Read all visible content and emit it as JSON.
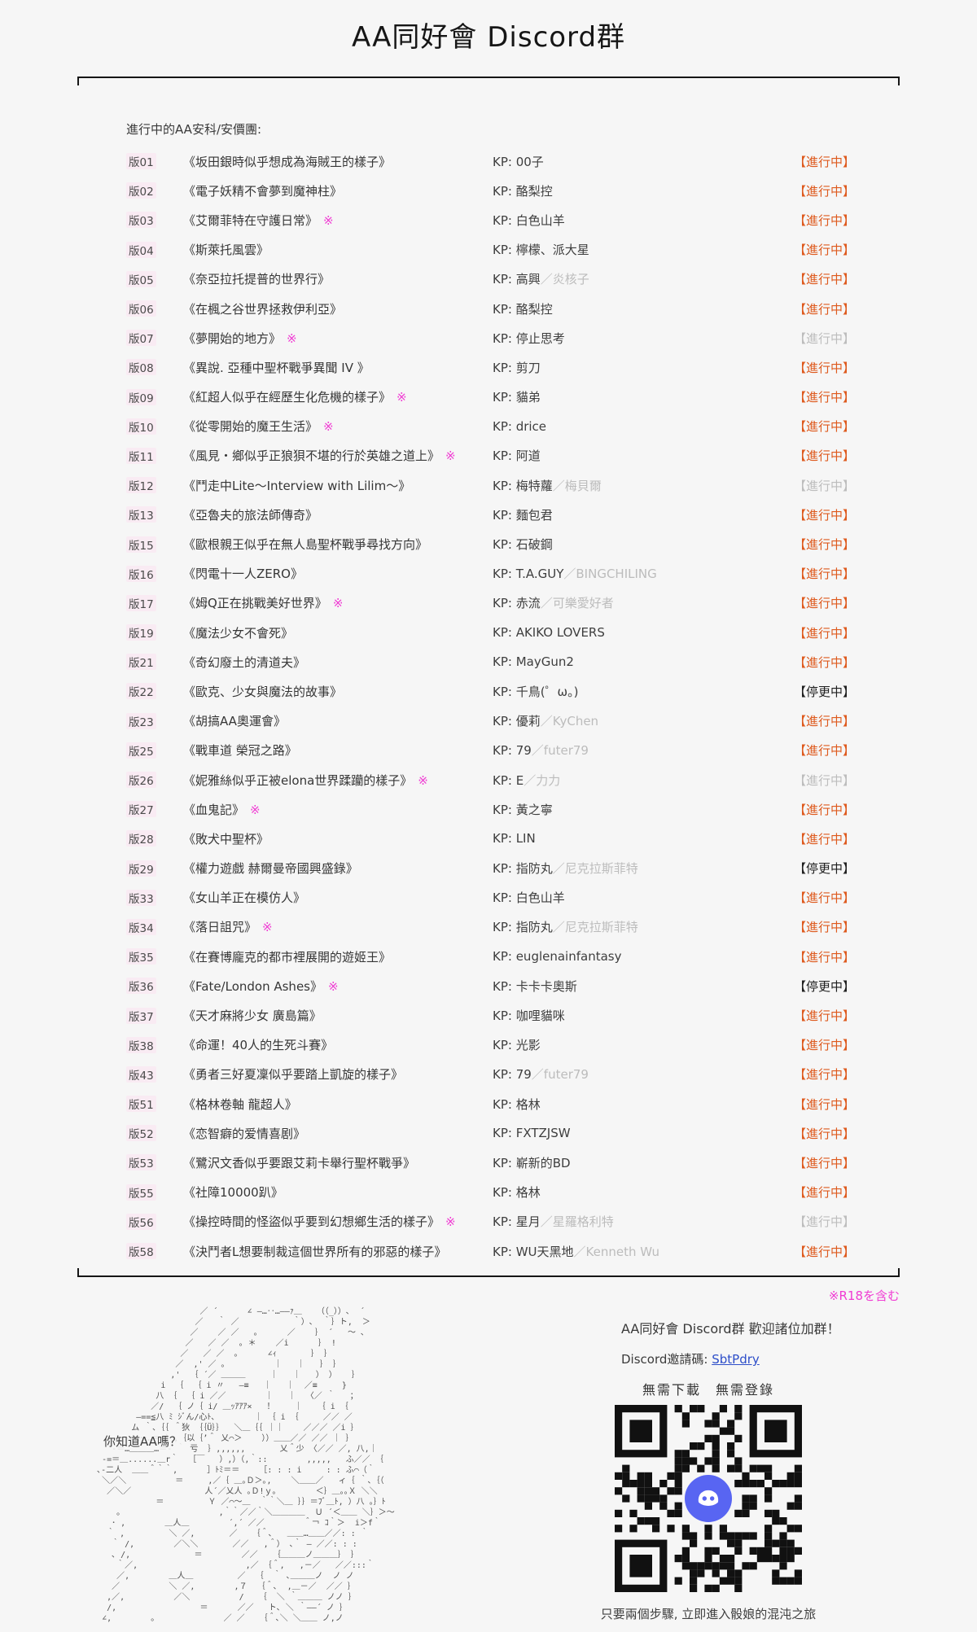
{
  "page": {
    "title": "AA同好會 Discord群"
  },
  "list": {
    "heading": "進行中的AA安科/安價團:",
    "kp_label": "KP: ",
    "r18_mark": "※",
    "rows": [
      {
        "num": "版01",
        "title": "《坂田銀時似乎想成為海賊王的樣子》",
        "r18": false,
        "kp": "00子",
        "kp2": "",
        "status": "【進行中】",
        "state": "active"
      },
      {
        "num": "版02",
        "title": "《電子妖精不會夢到魔神柱》",
        "r18": false,
        "kp": "酪梨控",
        "kp2": "",
        "status": "【進行中】",
        "state": "active"
      },
      {
        "num": "版03",
        "title": "《艾爾菲特在守護日常》",
        "r18": true,
        "kp": "白色山羊",
        "kp2": "",
        "status": "【進行中】",
        "state": "active"
      },
      {
        "num": "版04",
        "title": "《斯萊托風雲》",
        "r18": false,
        "kp": "檸檬、派大星",
        "kp2": "",
        "status": "【進行中】",
        "state": "active"
      },
      {
        "num": "版05",
        "title": "《奈亞拉托提普的世界行》",
        "r18": false,
        "kp": "高興",
        "kp2": "／炎核子",
        "status": "【進行中】",
        "state": "active"
      },
      {
        "num": "版06",
        "title": "《在楓之谷世界拯救伊利亞》",
        "r18": false,
        "kp": "酪梨控",
        "kp2": "",
        "status": "【進行中】",
        "state": "active"
      },
      {
        "num": "版07",
        "title": "《夢開始的地方》",
        "r18": true,
        "kp": "停止思考",
        "kp2": "",
        "status": "【進行中】",
        "state": "faded"
      },
      {
        "num": "版08",
        "title": "《異說. 亞種中聖杯戰爭異聞 IV 》",
        "r18": false,
        "kp": "剪刀",
        "kp2": "",
        "status": "【進行中】",
        "state": "active"
      },
      {
        "num": "版09",
        "title": "《紅超人似乎在經歷生化危機的樣子》",
        "r18": true,
        "kp": "貓弟",
        "kp2": "",
        "status": "【進行中】",
        "state": "active"
      },
      {
        "num": "版10",
        "title": "《從零開始的魔王生活》",
        "r18": true,
        "kp": "drice",
        "kp2": "",
        "status": "【進行中】",
        "state": "active"
      },
      {
        "num": "版11",
        "title": "《風見・鄉似乎正狼狽不堪的行於英雄之道上》",
        "r18": true,
        "kp": "阿道",
        "kp2": "",
        "status": "【進行中】",
        "state": "active"
      },
      {
        "num": "版12",
        "title": "《鬥走中Lite～Interview with Lilim～》",
        "r18": false,
        "kp": "梅特蘿",
        "kp2": "／梅貝爾",
        "status": "【進行中】",
        "state": "faded"
      },
      {
        "num": "版13",
        "title": "《亞魯夫的旅法師傳奇》",
        "r18": false,
        "kp": "麵包君",
        "kp2": "",
        "status": "【進行中】",
        "state": "active"
      },
      {
        "num": "版15",
        "title": "《歐根親王似乎在無人島聖杯戰爭尋找方向》",
        "r18": false,
        "kp": "石破鋼",
        "kp2": "",
        "status": "【進行中】",
        "state": "active"
      },
      {
        "num": "版16",
        "title": "《閃電十一人ZERO》",
        "r18": false,
        "kp": "T.A.GUY",
        "kp2": "／BINGCHILING",
        "status": "【進行中】",
        "state": "active"
      },
      {
        "num": "版17",
        "title": "《姆Q正在挑戰美好世界》",
        "r18": true,
        "kp": "赤流",
        "kp2": "／可樂愛好者",
        "status": "【進行中】",
        "state": "active"
      },
      {
        "num": "版19",
        "title": "《魔法少女不會死》",
        "r18": false,
        "kp": "AKIKO LOVERS",
        "kp2": "",
        "status": "【進行中】",
        "state": "active"
      },
      {
        "num": "版21",
        "title": "《奇幻廢土的清道夫》",
        "r18": false,
        "kp": "MayGun2",
        "kp2": "",
        "status": "【進行中】",
        "state": "active"
      },
      {
        "num": "版22",
        "title": "《歐克、少女與魔法的故事》",
        "r18": false,
        "kp": "千鳥(゜ω。)",
        "kp2": "",
        "status": "【停更中】",
        "state": "paused"
      },
      {
        "num": "版23",
        "title": "《胡搞AA奧運會》",
        "r18": false,
        "kp": "優莉",
        "kp2": "／KyChen",
        "status": "【進行中】",
        "state": "active"
      },
      {
        "num": "版25",
        "title": "《戰車道 榮冠之路》",
        "r18": false,
        "kp": "79",
        "kp2": "／futer79",
        "status": "【進行中】",
        "state": "active"
      },
      {
        "num": "版26",
        "title": "《妮雅絲似乎正被elona世界蹂躪的樣子》",
        "r18": true,
        "kp": "E",
        "kp2": "／力力",
        "status": "【進行中】",
        "state": "faded"
      },
      {
        "num": "版27",
        "title": "《血鬼記》",
        "r18": true,
        "kp": "黃之寧",
        "kp2": "",
        "status": "【進行中】",
        "state": "active"
      },
      {
        "num": "版28",
        "title": "《敗犬中聖杯》",
        "r18": false,
        "kp": "LIN",
        "kp2": "",
        "status": "【進行中】",
        "state": "active"
      },
      {
        "num": "版29",
        "title": "《權力遊戲 赫爾曼帝國興盛錄》",
        "r18": false,
        "kp": "指防丸",
        "kp2": "／尼克拉斯菲特",
        "status": "【停更中】",
        "state": "paused"
      },
      {
        "num": "版33",
        "title": "《女山羊正在模仿人》",
        "r18": false,
        "kp": "白色山羊",
        "kp2": "",
        "status": "【進行中】",
        "state": "active"
      },
      {
        "num": "版34",
        "title": "《落日詛咒》",
        "r18": true,
        "kp": "指防丸",
        "kp2": "／尼克拉斯菲特",
        "status": "【進行中】",
        "state": "active"
      },
      {
        "num": "版35",
        "title": "《在賽博龐克的都市裡展開的遊姬王》",
        "r18": false,
        "kp": "euglenainfantasy",
        "kp2": "",
        "status": "【進行中】",
        "state": "active"
      },
      {
        "num": "版36",
        "title": "《Fate/London Ashes》",
        "r18": true,
        "kp": "卡卡卡奧斯",
        "kp2": "",
        "status": "【停更中】",
        "state": "paused"
      },
      {
        "num": "版37",
        "title": "《天才麻將少女 廣島篇》",
        "r18": false,
        "kp": "咖哩貓咪",
        "kp2": "",
        "status": "【進行中】",
        "state": "active"
      },
      {
        "num": "版38",
        "title": "《命運！40人的生死斗賽》",
        "r18": false,
        "kp": "光影",
        "kp2": "",
        "status": "【進行中】",
        "state": "active"
      },
      {
        "num": "版43",
        "title": "《勇者三好夏凜似乎要踏上凱旋的樣子》",
        "r18": false,
        "kp": "79",
        "kp2": "／futer79",
        "status": "【進行中】",
        "state": "active"
      },
      {
        "num": "版51",
        "title": "《格林卷軸 龍超人》",
        "r18": false,
        "kp": "格林",
        "kp2": "",
        "status": "【進行中】",
        "state": "active"
      },
      {
        "num": "版52",
        "title": "《恋智癖的爱情喜剧》",
        "r18": false,
        "kp": "FXTZJSW",
        "kp2": "",
        "status": "【進行中】",
        "state": "active"
      },
      {
        "num": "版53",
        "title": "《鷺沢文香似乎要跟艾莉卡舉行聖杯戰爭》",
        "r18": false,
        "kp": "嶄新的BD",
        "kp2": "",
        "status": "【進行中】",
        "state": "active"
      },
      {
        "num": "版55",
        "title": "《社障10000趴》",
        "r18": false,
        "kp": "格林",
        "kp2": "",
        "status": "【進行中】",
        "state": "active"
      },
      {
        "num": "版56",
        "title": "《操控時間的怪盜似乎要到幻想鄉生活的樣子》",
        "r18": true,
        "kp": "星月",
        "kp2": "／星羅格利特",
        "status": "【進行中】",
        "state": "faded"
      },
      {
        "num": "版58",
        "title": "《決鬥者L想要制裁這個世界所有的邪惡的樣子》",
        "r18": false,
        "kp": "WU天黑地",
        "kp2": "／Kenneth Wu",
        "status": "【進行中】",
        "state": "active"
      }
    ]
  },
  "footer": {
    "r18_note": "※R18を含む",
    "aa_question": "你知道AA嗎？",
    "invite_heading": "AA同好會 Discord群  歡迎諸位加群！",
    "invite_label": "Discord邀請碼: ",
    "invite_code": "SbtPdry",
    "no_download": "無需下載　無需登錄",
    "qr_caption": "只要兩個步驟, 立即進入骰娘的混沌之旅",
    "discord_logo": "discord-mascot",
    "ascii_art": [
      "                         ／ ´      ∠ ―…‥…――ｧ＿   （（_））､  ´",
      "                        ／   ｀ ／           ｀）､  ｀｝ト,  ＞",
      "                       ／    ／ ／   ｡      ／    ｝ ´   ～ ､",
      "                      ／   ／ ／  ｡ ＊    ／i      ｝ !",
      "                     ／   ／ ／  ｡      ∠ｨ       ｝ ｝",
      "                    ／  ,' ／ ｡          ｜   ｜   ｝ ｝",
      "                   ,'  ｛ ´／ ＿＿＿     ｜   ｜   ） ）   ｝",
      "                 i  ｛  ｛ i 〃   ―≡   ｜   ｜  ／≡     }",
      "                八 ｛  ｛ i ／／        ｜   ｜  〈／ ｀   ；",
      "               ／/  ｛ ノ｛ i/ ＿ｯｱｱｱ×   ！    ｜   ｛ i ｛",
      "            ―==≦八 ﾐ ｼﾞん/心ﾄ､        ｜ ｛ i ｛     ／／ ／",
      "           ム ｀､｛｛ ＾狄 ｛｛Ü｝｝  ＼＿｛｛ ｜｜    ／／／ ／i ｝",
      "        ＿-=…･･…＝-）,｛以｛’＾ 乂⌒＞    ））＿＿／／ ／／ ｜ ｝",
      "       -＝…＿＿＿…＝- ｀ 亏  ｝,,,,,,       乂＾少 〈／／ ／, 八,｜",
      "     -=＝＿......＿r｀  ［￣   ）,）（,｀::        ,,,,,   ふ／／ ｛",
      "    ､-二人  ＿＿＾｀｀,      ］ﾄﾐ＝＝    ［: : : i     : : ふ⌒（｀",
      "     ＼／＼          ＝     ,／｛ ＿｡Ｄ＞｡,    ＼＿＿／   ィ｛ ｀､｛（",
      "      ／＼／               人´／乂人 ｡Ｄ!ｙ｡        ＜｝＿｡｡Ｘ ＼＼",
      "                ＝         Ｙ ／⌒～＿  ｀｀＼＿ ｝｝＝ﾌﾞ＿ﾄ, ）八 ｡｝ﾄ",
      "        ｡                    ,｀｀／／｀＼＿＿＿＿  Ｕ ´＜＿＿ ＼｝＞～",
      "       ･ ,        ＿人＿        ´,´ ／／        ＾￢ ｺ｀＞  i＞f｀",
      "      ｀ ,         ＼ ／,       ／   ｛＾､   ＿＿…＿＿／／: : ｀",
      "       ｀ /,        ／＼＼       ／／   ,＾） ､｀ ― ／／: : : ",
      "       ､ /,             ＝        ／／   ｛＿＿＿ノ＿＿＿｝ ｝",
      "        ｀／,                      ,／ ｛＾,   ,－／   ／／:::｀",
      "        ／,        ＿人＿         ／  ｛  ｀ ､＿＿＿ノ  ノ ノ",
      "       ／          ＼ ／,        ,７  ｛＾､  ,＿－／  ／／ ｝",
      "      ,／,          ／＼          /   ｛  ＼ ｀＿＿＿ ノノ ｝",
      "      /,                 ＝      ／／   ト､ ＼ ｀――´ ノ ｝",
      "     ∠,        ｡              ／ ／   ｛＾､＼ ＼＿＿ ノ,ノ"
    ]
  },
  "colors": {
    "status_active": "#de5a1e",
    "status_faded": "#bdbdbd",
    "status_paused": "#202020",
    "r18_pink": "#f03cd3",
    "link_blue": "#2d4ec9",
    "badge_bg": "#f9ebf3",
    "discord_purple": "#5865f2"
  }
}
